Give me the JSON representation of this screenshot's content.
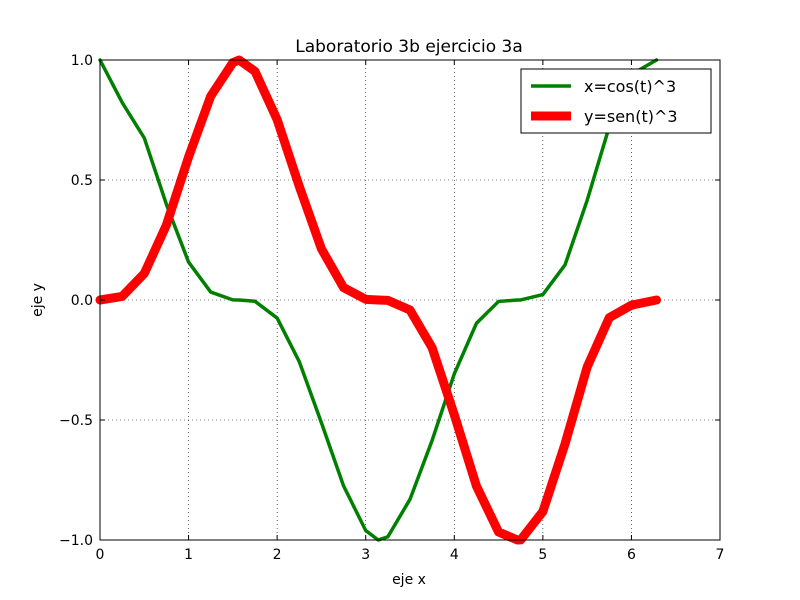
{
  "chart_data": {
    "type": "line",
    "title": "Laboratorio 3b ejercicio 3a",
    "xlabel": "eje x",
    "ylabel": "eje y",
    "xlim": [
      0,
      7
    ],
    "ylim": [
      -1.0,
      1.0
    ],
    "grid": true,
    "legend_position": "top-right",
    "x_ticks": [
      0,
      1,
      2,
      3,
      4,
      5,
      6,
      7
    ],
    "x_tick_labels": [
      "0",
      "1",
      "2",
      "3",
      "4",
      "5",
      "6",
      "7"
    ],
    "y_ticks": [
      1.0,
      0.5,
      0.0,
      -0.5,
      -1.0
    ],
    "y_tick_labels": [
      "1.0",
      "0.5",
      "0.0",
      "−0.5",
      "−1.0"
    ],
    "series": [
      {
        "name": "x=cos(t)^3",
        "color": "#008000",
        "x": [
          0.0,
          0.25,
          0.5,
          0.75,
          1.0,
          1.25,
          1.5,
          1.5708,
          1.75,
          2.0,
          2.25,
          2.5,
          2.75,
          3.0,
          3.1416,
          3.25,
          3.5,
          3.75,
          4.0,
          4.25,
          4.5,
          4.7124,
          4.75,
          5.0,
          5.25,
          5.5,
          5.75,
          6.0,
          6.2832
        ],
        "values": [
          1.0,
          0.823,
          0.675,
          0.398,
          0.158,
          0.033,
          0.0004,
          0.0,
          -0.0053,
          -0.0753,
          -0.2569,
          -0.5114,
          -0.7746,
          -0.9604,
          -1.0,
          -0.9864,
          -0.8305,
          -0.5847,
          -0.3077,
          -0.097,
          -0.006,
          0.0,
          0.0001,
          0.0228,
          0.1459,
          0.415,
          0.7226,
          0.9399,
          1.0
        ]
      },
      {
        "name": "y=sen(t)^3",
        "color": "#ff0000",
        "x": [
          0.0,
          0.25,
          0.5,
          0.75,
          1.0,
          1.25,
          1.5,
          1.5708,
          1.75,
          2.0,
          2.25,
          2.5,
          2.75,
          3.0,
          3.1416,
          3.25,
          3.5,
          3.75,
          4.0,
          4.25,
          4.5,
          4.7124,
          4.75,
          5.0,
          5.25,
          5.5,
          5.75,
          6.0,
          6.2832
        ],
        "values": [
          0.0,
          0.0151,
          0.1102,
          0.3127,
          0.5958,
          0.8492,
          0.9889,
          1.0,
          0.9525,
          0.7518,
          0.4735,
          0.2132,
          0.0514,
          0.0028,
          0.0,
          -0.0016,
          -0.0419,
          -0.1991,
          -0.4784,
          -0.775,
          -0.9668,
          -1.0,
          -0.9994,
          -0.8815,
          -0.6,
          -0.2795,
          -0.0735,
          -0.0215,
          0.0
        ]
      }
    ]
  }
}
